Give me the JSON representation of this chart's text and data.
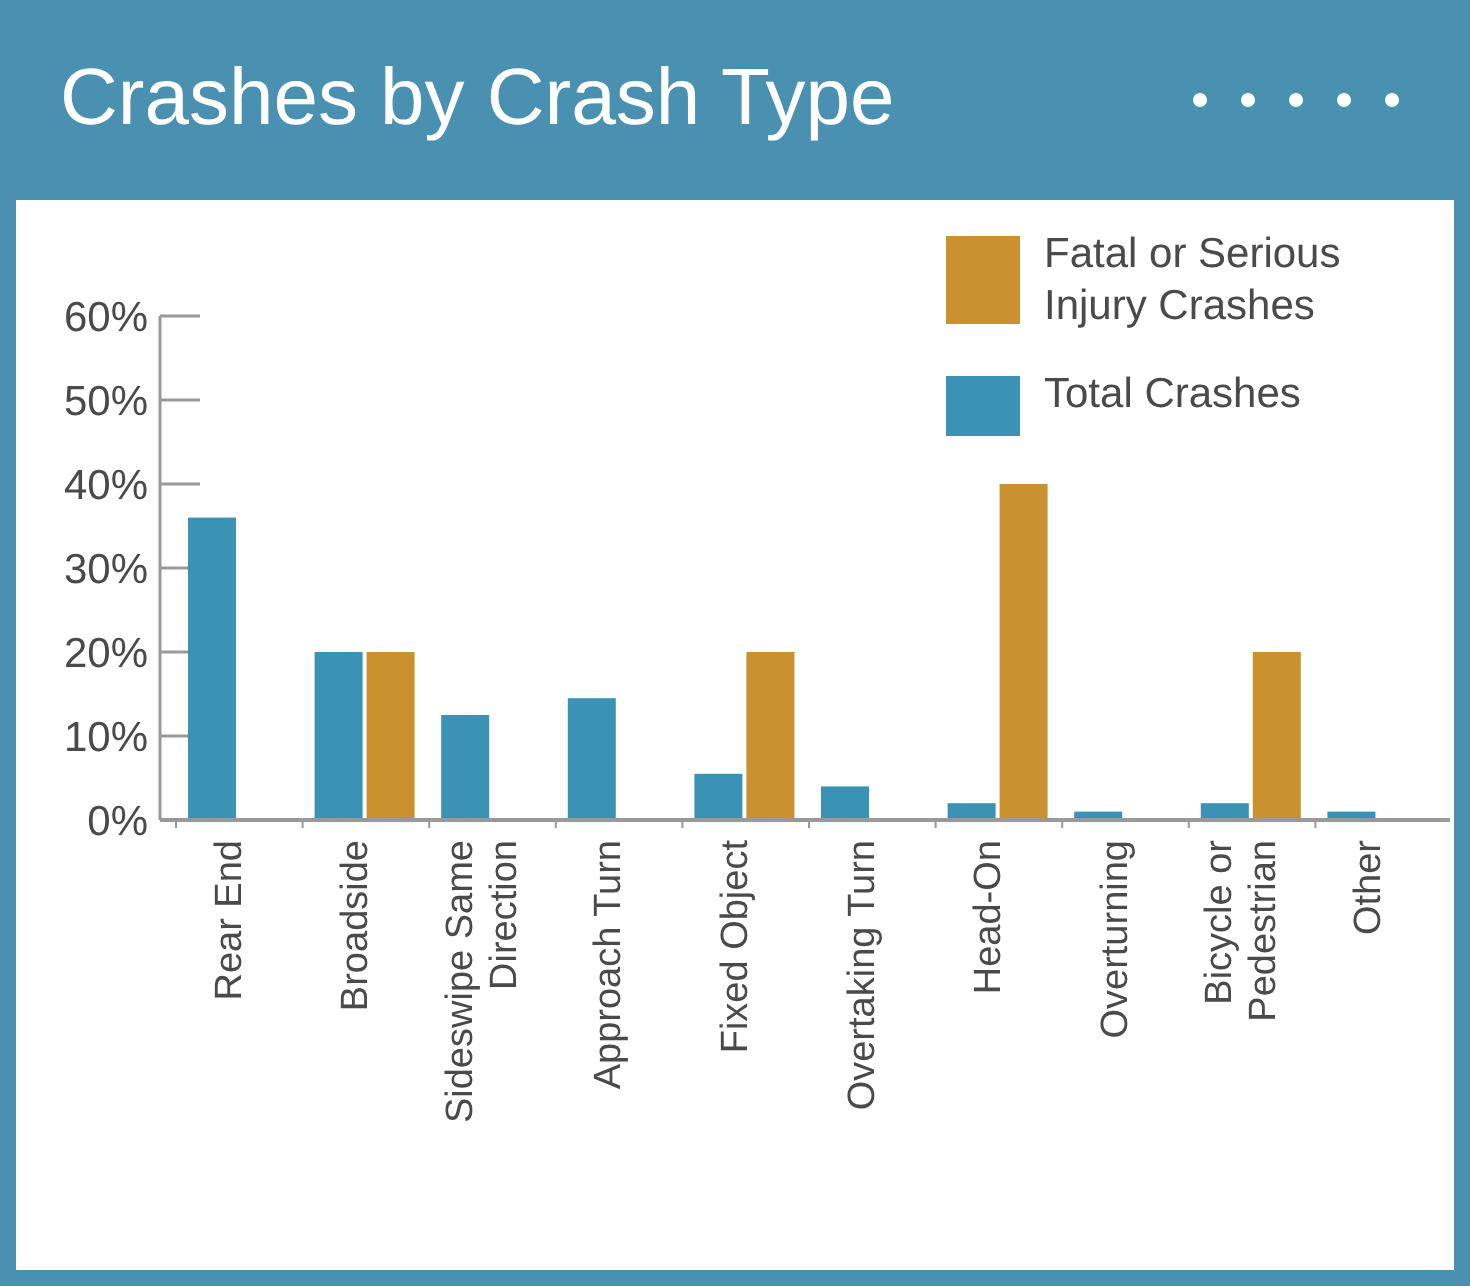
{
  "chart_data": {
    "type": "bar",
    "title": "Crashes by Crash Type",
    "categories": [
      "Rear End",
      "Broadside",
      "Sideswipe Same Direction",
      "Approach Turn",
      "Fixed Object",
      "Overtaking Turn",
      "Head-On",
      "Overturning",
      "Bicycle or Pedestrian",
      "Other"
    ],
    "series": [
      {
        "name": "Total Crashes",
        "color": "#3a93b5",
        "values": [
          36,
          20,
          12.5,
          14.5,
          5.5,
          4,
          2,
          1,
          2,
          1
        ]
      },
      {
        "name": "Fatal or Serious Injury Crashes",
        "color": "#c9922e",
        "values": [
          null,
          20,
          null,
          null,
          20,
          null,
          40,
          null,
          20,
          null
        ]
      }
    ],
    "ylim": [
      0,
      60
    ],
    "yticks": [
      {
        "value": 0,
        "label": "0%"
      },
      {
        "value": 10,
        "label": "10%"
      },
      {
        "value": 20,
        "label": "20%"
      },
      {
        "value": 30,
        "label": "30%"
      },
      {
        "value": 40,
        "label": "40%"
      },
      {
        "value": 50,
        "label": "50%"
      },
      {
        "value": 60,
        "label": "60%"
      }
    ],
    "grid": false,
    "legend": "top right"
  }
}
